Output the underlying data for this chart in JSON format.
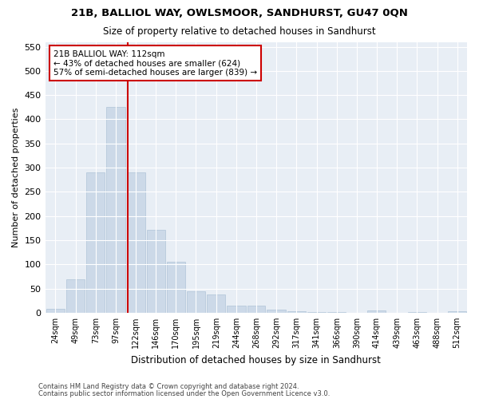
{
  "title": "21B, BALLIOL WAY, OWLSMOOR, SANDHURST, GU47 0QN",
  "subtitle": "Size of property relative to detached houses in Sandhurst",
  "xlabel": "Distribution of detached houses by size in Sandhurst",
  "ylabel": "Number of detached properties",
  "bar_color": "#ccd9e8",
  "bar_edge_color": "#b0c4d8",
  "bg_color": "#e8eef5",
  "grid_color": "#ffffff",
  "property_line_x": 112,
  "annotation_line1": "21B BALLIOL WAY: 112sqm",
  "annotation_line2": "← 43% of detached houses are smaller (624)",
  "annotation_line3": "57% of semi-detached houses are larger (839) →",
  "annotation_box_color": "#ffffff",
  "annotation_box_edge_color": "#cc0000",
  "vline_color": "#cc0000",
  "categories": [
    "24sqm",
    "49sqm",
    "73sqm",
    "97sqm",
    "122sqm",
    "146sqm",
    "170sqm",
    "195sqm",
    "219sqm",
    "244sqm",
    "268sqm",
    "292sqm",
    "317sqm",
    "341sqm",
    "366sqm",
    "390sqm",
    "414sqm",
    "439sqm",
    "463sqm",
    "488sqm",
    "512sqm"
  ],
  "bin_edges": [
    11.5,
    36.5,
    60.5,
    85.0,
    109.5,
    134.0,
    158.0,
    182.5,
    207.0,
    231.5,
    256.0,
    280.0,
    304.5,
    329.0,
    353.5,
    378.0,
    402.0,
    426.5,
    451.0,
    475.5,
    500.0,
    524.0
  ],
  "values": [
    8,
    70,
    290,
    425,
    290,
    172,
    105,
    44,
    38,
    14,
    15,
    7,
    4,
    2,
    2,
    0,
    5,
    0,
    1,
    0,
    3
  ],
  "ylim": [
    0,
    560
  ],
  "yticks": [
    0,
    50,
    100,
    150,
    200,
    250,
    300,
    350,
    400,
    450,
    500,
    550
  ],
  "footer1": "Contains HM Land Registry data © Crown copyright and database right 2024.",
  "footer2": "Contains public sector information licensed under the Open Government Licence v3.0."
}
